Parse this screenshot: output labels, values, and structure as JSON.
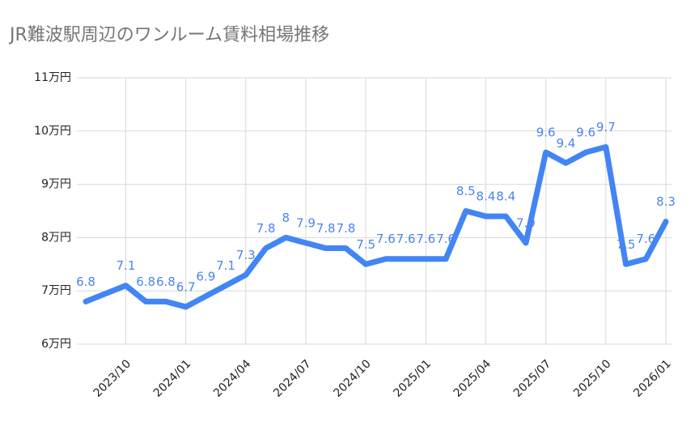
{
  "chart_data": {
    "type": "line",
    "title": "JR難波駅周辺のワンルーム賃料相場推移",
    "x": [
      "2023/08",
      "2023/10",
      "2023/11",
      "2023/12",
      "2024/01",
      "2024/02",
      "2024/03",
      "2024/04",
      "2024/05",
      "2024/06",
      "2024/07",
      "2024/08",
      "2024/09",
      "2024/10",
      "2024/11",
      "2024/12",
      "2025/01",
      "2025/02",
      "2025/03",
      "2025/04",
      "2025/05",
      "2025/06",
      "2025/07",
      "2025/08",
      "2025/09",
      "2025/10",
      "2025/11",
      "2025/12",
      "2026/01"
    ],
    "series": [
      {
        "color": "#4285f4",
        "values": [
          6.8,
          7.1,
          6.8,
          6.8,
          6.7,
          6.9,
          7.1,
          7.3,
          7.8,
          8.0,
          7.9,
          7.8,
          7.8,
          7.5,
          7.6,
          7.6,
          7.6,
          7.6,
          8.5,
          8.4,
          8.4,
          7.9,
          9.6,
          9.4,
          9.6,
          9.7,
          7.5,
          7.6,
          8.3
        ]
      }
    ],
    "xlim": [
      "2023/08",
      "2026/01"
    ],
    "xticks": [
      "2023/10",
      "2024/01",
      "2024/04",
      "2024/07",
      "2024/10",
      "2025/01",
      "2025/04",
      "2025/07",
      "2025/10",
      "2026/01"
    ],
    "ylim": [
      6,
      11
    ],
    "yticks": [
      {
        "value": 6,
        "label": "6万円"
      },
      {
        "value": 7,
        "label": "7万円"
      },
      {
        "value": 8,
        "label": "8万円"
      },
      {
        "value": 9,
        "label": "9万円"
      },
      {
        "value": 10,
        "label": "10万円"
      },
      {
        "value": 11,
        "label": "11万円"
      }
    ],
    "grid": true
  }
}
